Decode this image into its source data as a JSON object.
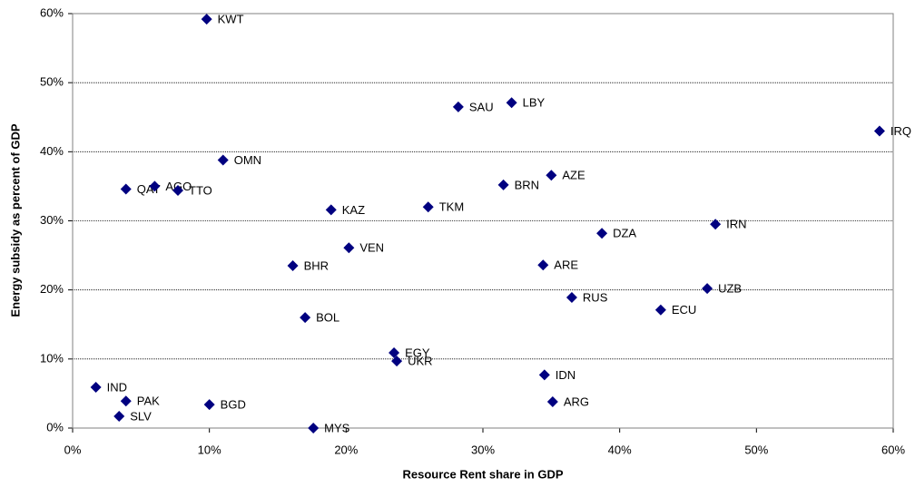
{
  "chart_data": {
    "type": "scatter",
    "xlabel": "Resource Rent share in GDP",
    "ylabel": "Energy subsidy as percent of GDP",
    "color": "#000080",
    "grid": true,
    "labels": [
      "KWT",
      "SAU",
      "LBY",
      "IRQ",
      "OMN",
      "QAT",
      "AGO",
      "TTO",
      "AZE",
      "BRN",
      "KAZ",
      "TKM",
      "DZA",
      "IRN",
      "VEN",
      "BHR",
      "ARE",
      "RUS",
      "UZB",
      "ECU",
      "BOL",
      "EGY",
      "UKR",
      "IDN",
      "IND",
      "PAK",
      "ARG",
      "BGD",
      "SLV",
      "MYS"
    ],
    "x": [
      9.8,
      28.2,
      32.1,
      59.0,
      11.0,
      3.9,
      6.0,
      7.7,
      35.0,
      31.5,
      18.9,
      26.0,
      38.7,
      47.0,
      20.2,
      16.1,
      34.4,
      36.5,
      46.4,
      43.0,
      17.0,
      23.5,
      23.7,
      34.5,
      1.7,
      3.9,
      35.1,
      10.0,
      3.4,
      17.6
    ],
    "values": [
      59.2,
      46.5,
      47.1,
      43.0,
      38.8,
      34.6,
      35.0,
      34.4,
      36.6,
      35.2,
      31.6,
      32.0,
      28.2,
      29.5,
      26.1,
      23.5,
      23.6,
      18.9,
      20.2,
      17.1,
      16.0,
      10.9,
      9.7,
      7.7,
      5.9,
      3.9,
      3.8,
      3.4,
      1.7,
      0.0
    ],
    "xlim": [
      0,
      60
    ],
    "ylim": [
      0,
      60
    ],
    "xticks": [
      {
        "value": 0,
        "label": "0%"
      },
      {
        "value": 10,
        "label": "10%"
      },
      {
        "value": 20,
        "label": "20%"
      },
      {
        "value": 30,
        "label": "30%"
      },
      {
        "value": 40,
        "label": "40%"
      },
      {
        "value": 50,
        "label": "50%"
      },
      {
        "value": 60,
        "label": "60%"
      }
    ],
    "yticks": [
      {
        "value": 0,
        "label": "0%"
      },
      {
        "value": 10,
        "label": "10%"
      },
      {
        "value": 20,
        "label": "20%"
      },
      {
        "value": 30,
        "label": "30%"
      },
      {
        "value": 40,
        "label": "40%"
      },
      {
        "value": 50,
        "label": "50%"
      },
      {
        "value": 60,
        "label": "60%"
      }
    ]
  }
}
